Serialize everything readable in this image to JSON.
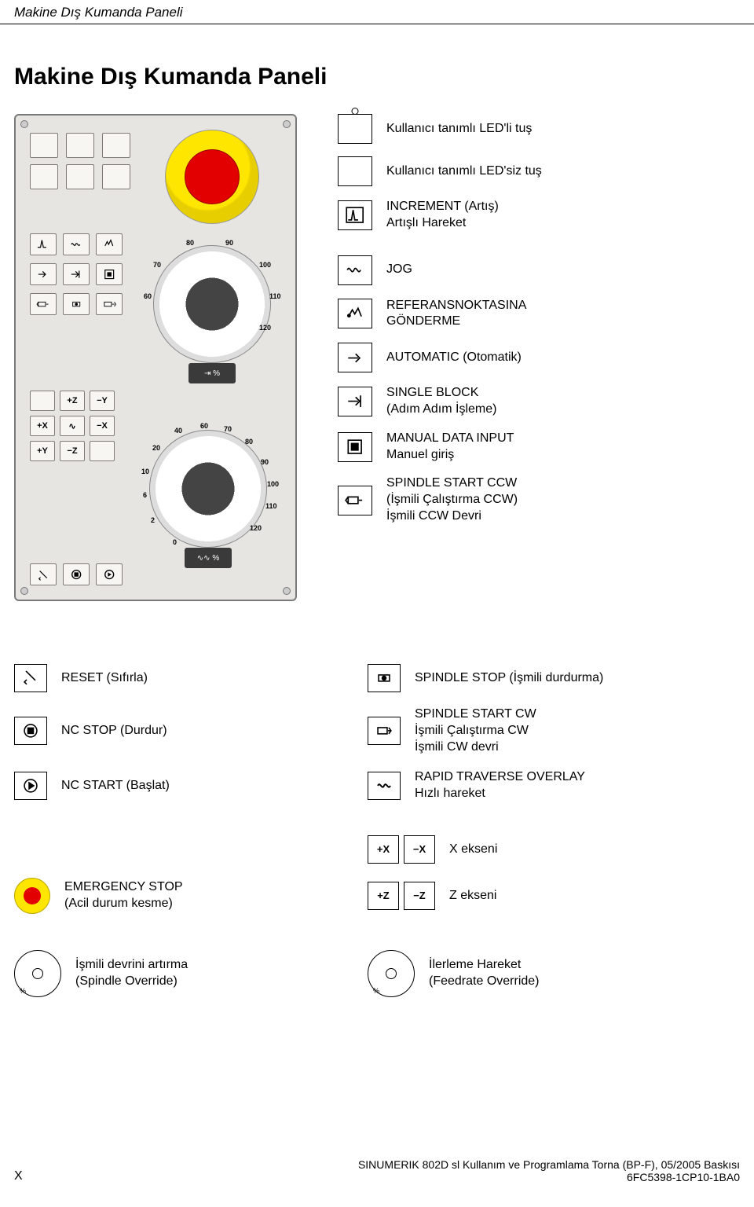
{
  "header_title": "Makine Dış Kumanda Paneli",
  "main_title": "Makine Dış Kumanda Paneli",
  "panel": {
    "dial1_labels": [
      "60",
      "70",
      "80",
      "90",
      "100",
      "110",
      "120",
      "%"
    ],
    "dial2_labels": [
      "0",
      "2",
      "6",
      "10",
      "20",
      "40",
      "60",
      "70",
      "80",
      "90",
      "100",
      "110",
      "120",
      "%"
    ],
    "axis_row1": [
      "",
      "+Z",
      "−Y"
    ],
    "axis_row2": [
      "+X",
      "∿",
      "−X"
    ],
    "axis_row3": [
      "+Y",
      "−Z",
      ""
    ],
    "dial_base_symbol": "⇥  %",
    "dial_base_symbol2": "∿∿  %",
    "bg_color": "#e6e5e1",
    "border_color": "#7a7a7a",
    "estop_yellow": "#ffe600",
    "estop_red": "#e30000"
  },
  "legend_upper": [
    {
      "icon": "led-button",
      "text": "Kullanıcı tanımlı LED'li tuş"
    },
    {
      "icon": "plain-button",
      "text": "Kullanıcı tanımlı LED'siz tuş"
    },
    {
      "icon": "increment",
      "text": "INCREMENT (Artış)\nArtışlı Hareket"
    },
    {
      "icon": "jog",
      "text": "JOG"
    },
    {
      "icon": "refpoint",
      "text": "REFERANSNOKTASINA\nGÖNDERME"
    },
    {
      "icon": "automatic",
      "text": "AUTOMATIC (Otomatik)"
    },
    {
      "icon": "singleblock",
      "text": "SINGLE BLOCK\n(Adım Adım İşleme)"
    },
    {
      "icon": "mdi",
      "text": "MANUAL DATA INPUT\nManuel giriş"
    },
    {
      "icon": "spindle-ccw",
      "text": "SPINDLE START CCW\n(İşmili Çalıştırma CCW)\nİşmili CCW Devri"
    }
  ],
  "lower_left": [
    {
      "icon": "reset",
      "text": "RESET (Sıfırla)"
    },
    {
      "icon": "nc-stop",
      "text": "NC STOP (Durdur)"
    },
    {
      "icon": "nc-start",
      "text": "NC START (Başlat)"
    },
    {
      "icon": "estop-small",
      "text": "EMERGENCY STOP\n(Acil durum kesme)"
    },
    {
      "icon": "override-dial",
      "text": "İşmili devrini artırma\n(Spindle Override)"
    }
  ],
  "lower_right": [
    {
      "icon": "spindle-stop",
      "text": "SPINDLE STOP (İşmili durdurma)"
    },
    {
      "icon": "spindle-cw",
      "text": "SPINDLE START CW\nİşmili Çalıştırma CW\nİşmili CW devri"
    },
    {
      "icon": "rapid",
      "text": "RAPID TRAVERSE OVERLAY\nHızlı hareket"
    },
    {
      "icon": "x-axis-pair",
      "text": "X ekseni",
      "pair": [
        "+X",
        "−X"
      ]
    },
    {
      "icon": "z-axis-pair",
      "text": "Z ekseni",
      "pair": [
        "+Z",
        "−Z"
      ]
    },
    {
      "icon": "override-dial",
      "text": "İlerleme Hareket\n(Feedrate Override)"
    }
  ],
  "footer": {
    "page": "X",
    "line1": "SINUMERIK 802D sl Kullanım ve Programlama Torna (BP-F), 05/2005 Baskısı",
    "line2": "6FC5398-1CP10-1BA0"
  },
  "style": {
    "text_color": "#000000",
    "body_font_size": 16,
    "title_font_size": 30,
    "header_font_size": 17,
    "icon_border_color": "#000000",
    "panel_key_border": "#7d7b74",
    "panel_key_bg": "#f7f6f3"
  }
}
